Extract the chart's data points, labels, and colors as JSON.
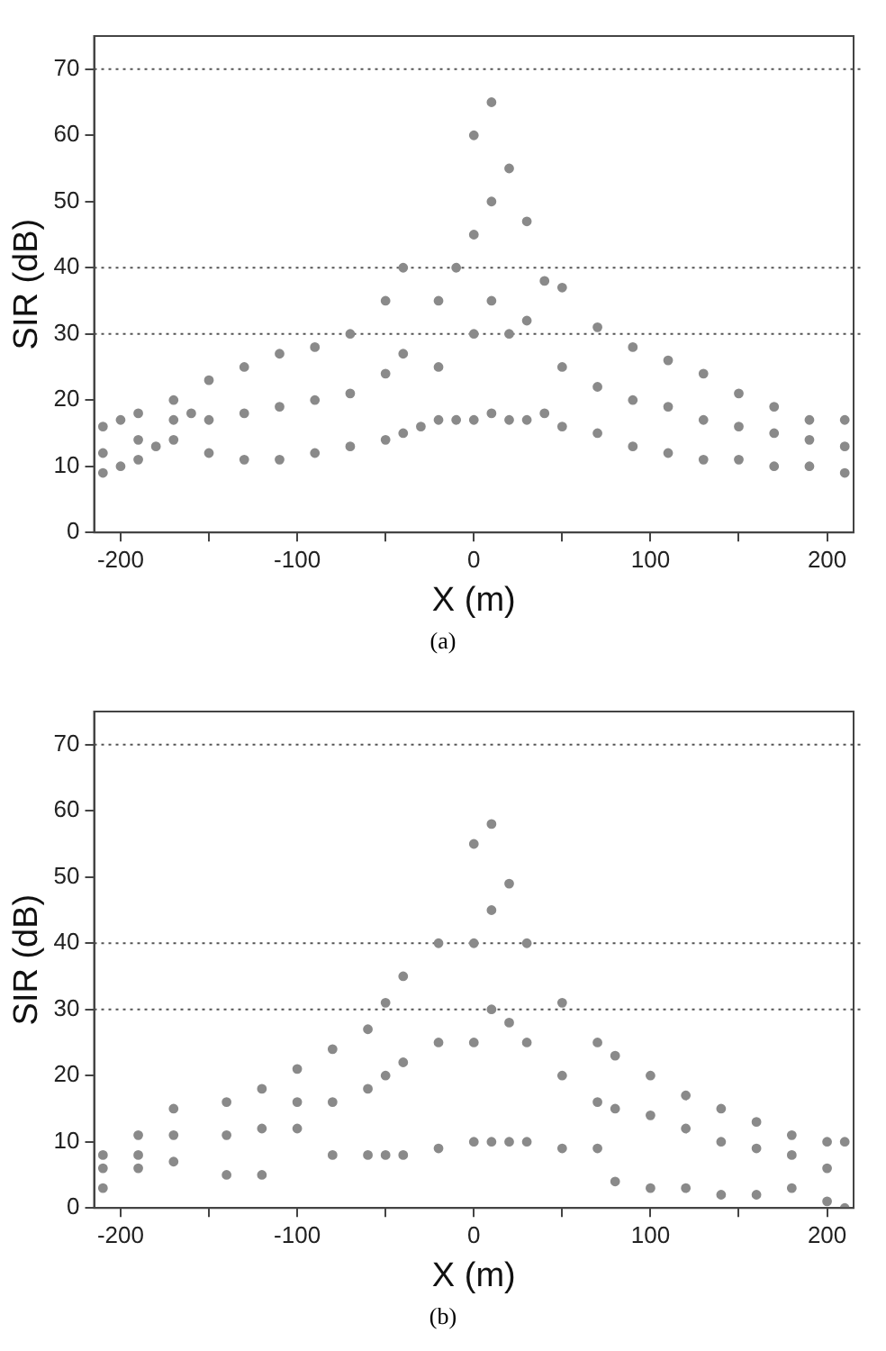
{
  "chart_data": [
    {
      "type": "scatter",
      "xlabel": "X (m)",
      "ylabel": "SIR (dB)",
      "annotations": [
        "(a)"
      ],
      "marker": "circle",
      "grid": false,
      "xlim": [
        -215,
        215
      ],
      "xticks": [
        -200,
        {
          "value": -150,
          "label": null
        },
        -100,
        {
          "value": -50,
          "label": null
        },
        0,
        {
          "value": 50,
          "label": null
        },
        100,
        {
          "value": 150,
          "label": null
        },
        200
      ],
      "ylim": [
        0,
        75
      ],
      "yticks": [
        0,
        10,
        20,
        30,
        40,
        50,
        60,
        70
      ],
      "ref_lines": [
        {
          "axis": "y",
          "value": 30,
          "line_style": "dotted",
          "color": "#555555"
        },
        {
          "axis": "y",
          "value": 40,
          "line_style": "dotted",
          "color": "#555555"
        },
        {
          "axis": "y",
          "value": 70,
          "line_style": "dotted",
          "color": "#555555"
        }
      ],
      "series": [
        {
          "color": "#8a8a8a",
          "x": [
            -210,
            -210,
            -210,
            -200,
            -200,
            -190,
            -190,
            -190,
            -180,
            -170,
            -170,
            -170,
            -160,
            -150,
            -150,
            -150,
            -130,
            -130,
            -130,
            -110,
            -110,
            -110,
            -90,
            -90,
            -90,
            -70,
            -70,
            -70,
            -50,
            -50,
            -50,
            -40,
            -40,
            -40,
            -30,
            -20,
            -20,
            -20,
            -10,
            -10,
            0,
            0,
            0,
            0,
            10,
            10,
            10,
            10,
            20,
            20,
            20,
            30,
            30,
            30,
            40,
            40,
            50,
            50,
            50,
            70,
            70,
            70,
            90,
            90,
            90,
            110,
            110,
            110,
            130,
            130,
            130,
            150,
            150,
            150,
            170,
            170,
            170,
            190,
            190,
            190,
            210,
            210,
            210
          ],
          "values": [
            9,
            12,
            16,
            10,
            17,
            11,
            14,
            18,
            13,
            14,
            17,
            20,
            18,
            12,
            17,
            23,
            11,
            18,
            25,
            11,
            19,
            27,
            12,
            20,
            28,
            13,
            21,
            30,
            14,
            24,
            35,
            15,
            27,
            40,
            16,
            17,
            25,
            35,
            17,
            40,
            17,
            30,
            45,
            60,
            18,
            35,
            50,
            65,
            17,
            30,
            55,
            17,
            32,
            47,
            18,
            38,
            16,
            25,
            37,
            15,
            22,
            31,
            13,
            20,
            28,
            12,
            19,
            26,
            11,
            17,
            24,
            11,
            16,
            21,
            10,
            15,
            19,
            10,
            14,
            17,
            9,
            13,
            17
          ]
        }
      ]
    },
    {
      "type": "scatter",
      "xlabel": "X (m)",
      "ylabel": "SIR (dB)",
      "annotations": [
        "(b)"
      ],
      "marker": "circle",
      "grid": false,
      "xlim": [
        -215,
        215
      ],
      "xticks": [
        -200,
        {
          "value": -150,
          "label": null
        },
        -100,
        {
          "value": -50,
          "label": null
        },
        0,
        {
          "value": 50,
          "label": null
        },
        100,
        {
          "value": 150,
          "label": null
        },
        200
      ],
      "ylim": [
        0,
        75
      ],
      "yticks": [
        0,
        10,
        20,
        30,
        40,
        50,
        60,
        70
      ],
      "ref_lines": [
        {
          "axis": "y",
          "value": 30,
          "line_style": "dotted",
          "color": "#555555"
        },
        {
          "axis": "y",
          "value": 40,
          "line_style": "dotted",
          "color": "#555555"
        },
        {
          "axis": "y",
          "value": 70,
          "line_style": "dotted",
          "color": "#555555"
        }
      ],
      "series": [
        {
          "color": "#8a8a8a",
          "x": [
            -210,
            -210,
            -210,
            -190,
            -190,
            -190,
            -170,
            -170,
            -170,
            -140,
            -140,
            -140,
            -120,
            -120,
            -120,
            -100,
            -100,
            -100,
            -80,
            -80,
            -80,
            -60,
            -60,
            -60,
            -50,
            -50,
            -50,
            -40,
            -40,
            -40,
            -20,
            -20,
            -20,
            0,
            0,
            0,
            0,
            10,
            10,
            10,
            10,
            20,
            20,
            20,
            30,
            30,
            30,
            50,
            50,
            50,
            70,
            70,
            70,
            80,
            80,
            80,
            100,
            100,
            100,
            120,
            120,
            120,
            140,
            140,
            140,
            160,
            160,
            160,
            180,
            180,
            180,
            200,
            200,
            200,
            210,
            210
          ],
          "values": [
            3,
            6,
            8,
            6,
            8,
            11,
            7,
            11,
            15,
            5,
            11,
            16,
            5,
            12,
            18,
            12,
            16,
            21,
            8,
            16,
            24,
            8,
            18,
            27,
            8,
            20,
            31,
            8,
            22,
            35,
            9,
            25,
            40,
            10,
            25,
            40,
            55,
            10,
            30,
            45,
            58,
            10,
            28,
            49,
            10,
            25,
            40,
            9,
            20,
            31,
            9,
            16,
            25,
            4,
            15,
            23,
            3,
            14,
            20,
            3,
            12,
            17,
            2,
            10,
            15,
            2,
            9,
            13,
            3,
            8,
            11,
            1,
            6,
            10,
            0,
            10
          ]
        }
      ]
    }
  ]
}
